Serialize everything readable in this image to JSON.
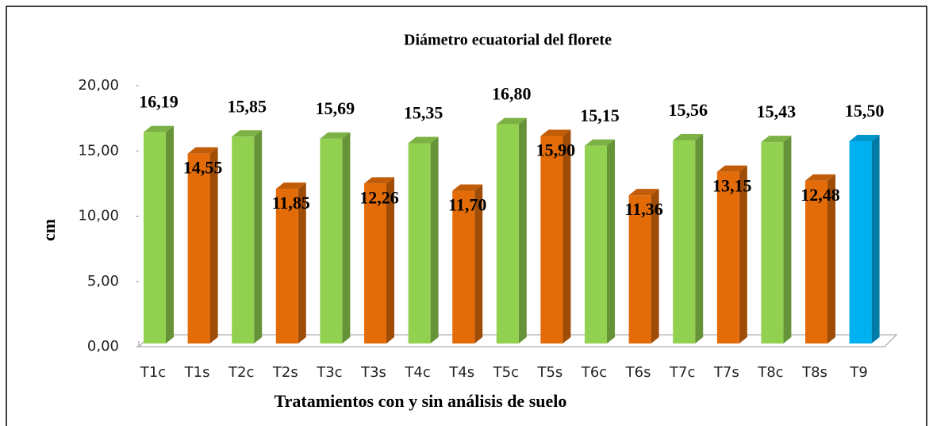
{
  "chart_data": {
    "type": "bar3d",
    "title": "Diámetro ecuatorial del florete",
    "x_label": "Tratamientos con y sin análisis de suelo",
    "y_label": "cm",
    "categories": [
      "T1c",
      "T1s",
      "T2c",
      "T2s",
      "T3c",
      "T3s",
      "T4c",
      "T4s",
      "T5c",
      "T5s",
      "T6c",
      "T6s",
      "T7c",
      "T7s",
      "T8c",
      "T8s",
      "T9"
    ],
    "values": [
      16.19,
      14.55,
      15.85,
      11.85,
      15.69,
      12.26,
      15.35,
      11.7,
      16.8,
      15.9,
      15.15,
      11.36,
      15.56,
      13.15,
      15.43,
      12.48,
      15.5
    ],
    "value_labels": [
      "16,19",
      "14,55",
      "15,85",
      "11,85",
      "15,69",
      "12,26",
      "15,35",
      "11,70",
      "16,80",
      "15,90",
      "15,15",
      "11,36",
      "15,56",
      "13,15",
      "15,43",
      "12,48",
      "15,50"
    ],
    "colors": [
      "#92d050",
      "#e36c09",
      "#92d050",
      "#e36c09",
      "#92d050",
      "#e36c09",
      "#92d050",
      "#e36c09",
      "#92d050",
      "#e36c09",
      "#92d050",
      "#e36c09",
      "#92d050",
      "#e36c09",
      "#92d050",
      "#e36c09",
      "#00b0f0"
    ],
    "ylim": [
      0,
      20
    ],
    "yticks": [
      {
        "value": 0,
        "label": "0,00"
      },
      {
        "value": 5,
        "label": "5,00"
      },
      {
        "value": 10,
        "label": "10,00"
      },
      {
        "value": 15,
        "label": "15,00"
      },
      {
        "value": 20,
        "label": "20,00"
      }
    ]
  }
}
